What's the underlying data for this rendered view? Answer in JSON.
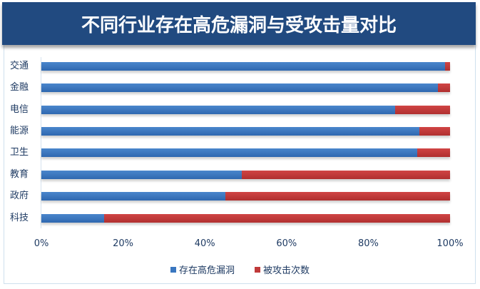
{
  "title": "不同行业存在高危漏洞与受攻击量对比",
  "legend": [
    {
      "label": "存在高危漏洞",
      "color": "#3a77c0"
    },
    {
      "label": "被攻击次数",
      "color": "#c03a3a"
    }
  ],
  "x_ticks": [
    "0%",
    "20%",
    "40%",
    "60%",
    "80%",
    "100%"
  ],
  "chart_data": {
    "type": "bar",
    "orientation": "horizontal",
    "stacked": "percent",
    "title": "不同行业存在高危漏洞与受攻击量对比",
    "categories": [
      "交通",
      "金融",
      "电信",
      "能源",
      "卫生",
      "教育",
      "政府",
      "科技"
    ],
    "series": [
      {
        "name": "存在高危漏洞",
        "values": [
          98.8,
          97,
          86.5,
          92.5,
          92,
          49,
          45,
          15.4
        ],
        "color": "#3a77c0"
      },
      {
        "name": "被攻击次数",
        "values": [
          1.2,
          3,
          13.5,
          7.5,
          8,
          51,
          55,
          84.6
        ],
        "color": "#c03a3a"
      }
    ],
    "xlabel": "",
    "ylabel": "",
    "xlim": [
      0,
      100
    ],
    "x_tick_labels": [
      "0%",
      "20%",
      "40%",
      "60%",
      "80%",
      "100%"
    ],
    "grid": false,
    "legend_position": "bottom"
  }
}
